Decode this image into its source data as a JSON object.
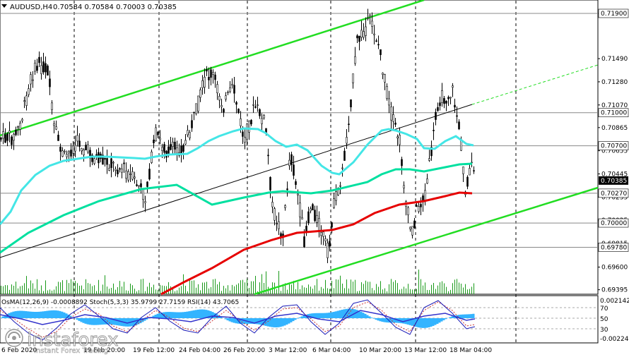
{
  "header": {
    "symbol": "AUDUSD,H4",
    "ohlc": "0.70584 0.70584 0.70003 0.70385",
    "arrow_icon": "triangle-down-icon"
  },
  "price_axis": {
    "labels": [
      "0.71900",
      "0.71490",
      "0.71280",
      "0.71070",
      "0.70865",
      "0.70655",
      "0.70445",
      "0.70235",
      "0.70025",
      "0.69815",
      "0.69600",
      "0.69395"
    ],
    "highlighted": [
      {
        "value": "0.71900",
        "style": "plain"
      },
      {
        "value": "0.71000",
        "style": "plain"
      },
      {
        "value": "0.70700",
        "style": "plain"
      },
      {
        "value": "0.70385",
        "style": "current"
      },
      {
        "value": "0.70270",
        "style": "plain"
      },
      {
        "value": "0.70000",
        "style": "plain"
      },
      {
        "value": "0.69780",
        "style": "plain"
      }
    ]
  },
  "time_axis": {
    "labels": [
      "19 Feb 12:00",
      "24 Feb 04:00",
      "26 Feb 20:00",
      "3 Mar 12:00",
      "6 Mar 04:00",
      "10 Mar 20:00",
      "13 Mar 12:00",
      "18 Mar 04:00"
    ],
    "partial_left": [
      "6 Feb 2020",
      "19 Feb 20:00"
    ]
  },
  "indicator": {
    "label": "OsMA(12,26,9) -0.0008892  Stoch(5,3,3) 35.9799 27.7159  RSI(14) 43.7065",
    "axis_top": "0.0021423",
    "axis_bottom": "-0.0022400",
    "levels": [
      "70",
      "50",
      "30"
    ]
  },
  "watermark": {
    "brand": "instaforex",
    "tagline": "Instant Forex Trading",
    "logo_icon": "instaforex-logo-icon"
  },
  "colors": {
    "background": "#ffffff",
    "candle": "#000000",
    "ema_slow": "#e60000",
    "ema_mid": "#00e0a0",
    "ema_fast": "#44e6e6",
    "channel": "#22dd22",
    "osma": "#33b4ff",
    "stoch_main": "#1a1ab8",
    "stoch_signal": "#cc3333",
    "rsi": "#3333cc",
    "current_label_bg": "#000000"
  }
}
